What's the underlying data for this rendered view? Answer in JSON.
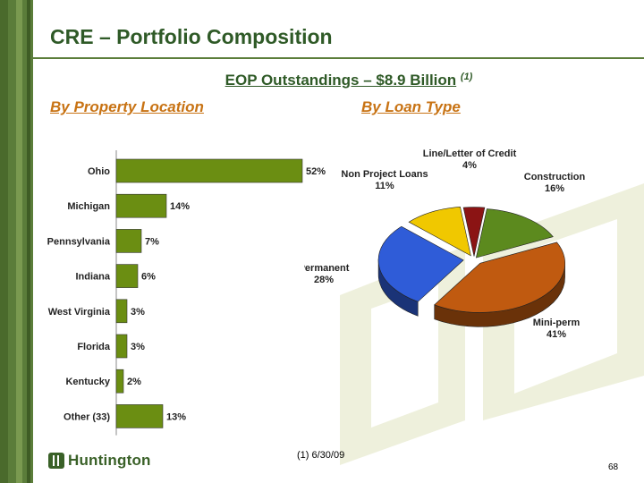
{
  "title": "CRE – Portfolio Composition",
  "subtitle": {
    "text": "EOP Outstandings – $8.9 Billion",
    "note": "(1)"
  },
  "left_heading": "By Property Location",
  "right_heading": "By Loan Type",
  "footnote": "(1)   6/30/09",
  "page_number": "68",
  "logo_text": "Huntington",
  "colors": {
    "bar": "#6b8e12",
    "title": "#2f5a27",
    "heading": "#c87314"
  },
  "chart_data": [
    {
      "type": "bar",
      "orientation": "horizontal",
      "categories": [
        "Ohio",
        "Michigan",
        "Pennsylvania",
        "Indiana",
        "West Virginia",
        "Florida",
        "Kentucky",
        "Other (33)"
      ],
      "values": [
        52,
        14,
        7,
        6,
        3,
        3,
        2,
        13
      ],
      "value_labels": [
        "52%",
        "14%",
        "7%",
        "6%",
        "3%",
        "3%",
        "2%",
        "13%"
      ],
      "unit": "%"
    },
    {
      "type": "pie",
      "style": "3d exploded",
      "slices": [
        {
          "name": "Line/Letter of Credit",
          "value": 4,
          "label": "4%",
          "color": "#8b1414"
        },
        {
          "name": "Construction",
          "value": 16,
          "label": "16%",
          "color": "#5c8a1e"
        },
        {
          "name": "Mini-perm",
          "value": 41,
          "label": "41%",
          "color": "#c05a10"
        },
        {
          "name": "Permanent",
          "value": 28,
          "label": "28%",
          "color": "#2f5cd8"
        },
        {
          "name": "Non Project Loans",
          "value": 11,
          "label": "11%",
          "color": "#f0c800"
        }
      ]
    }
  ]
}
